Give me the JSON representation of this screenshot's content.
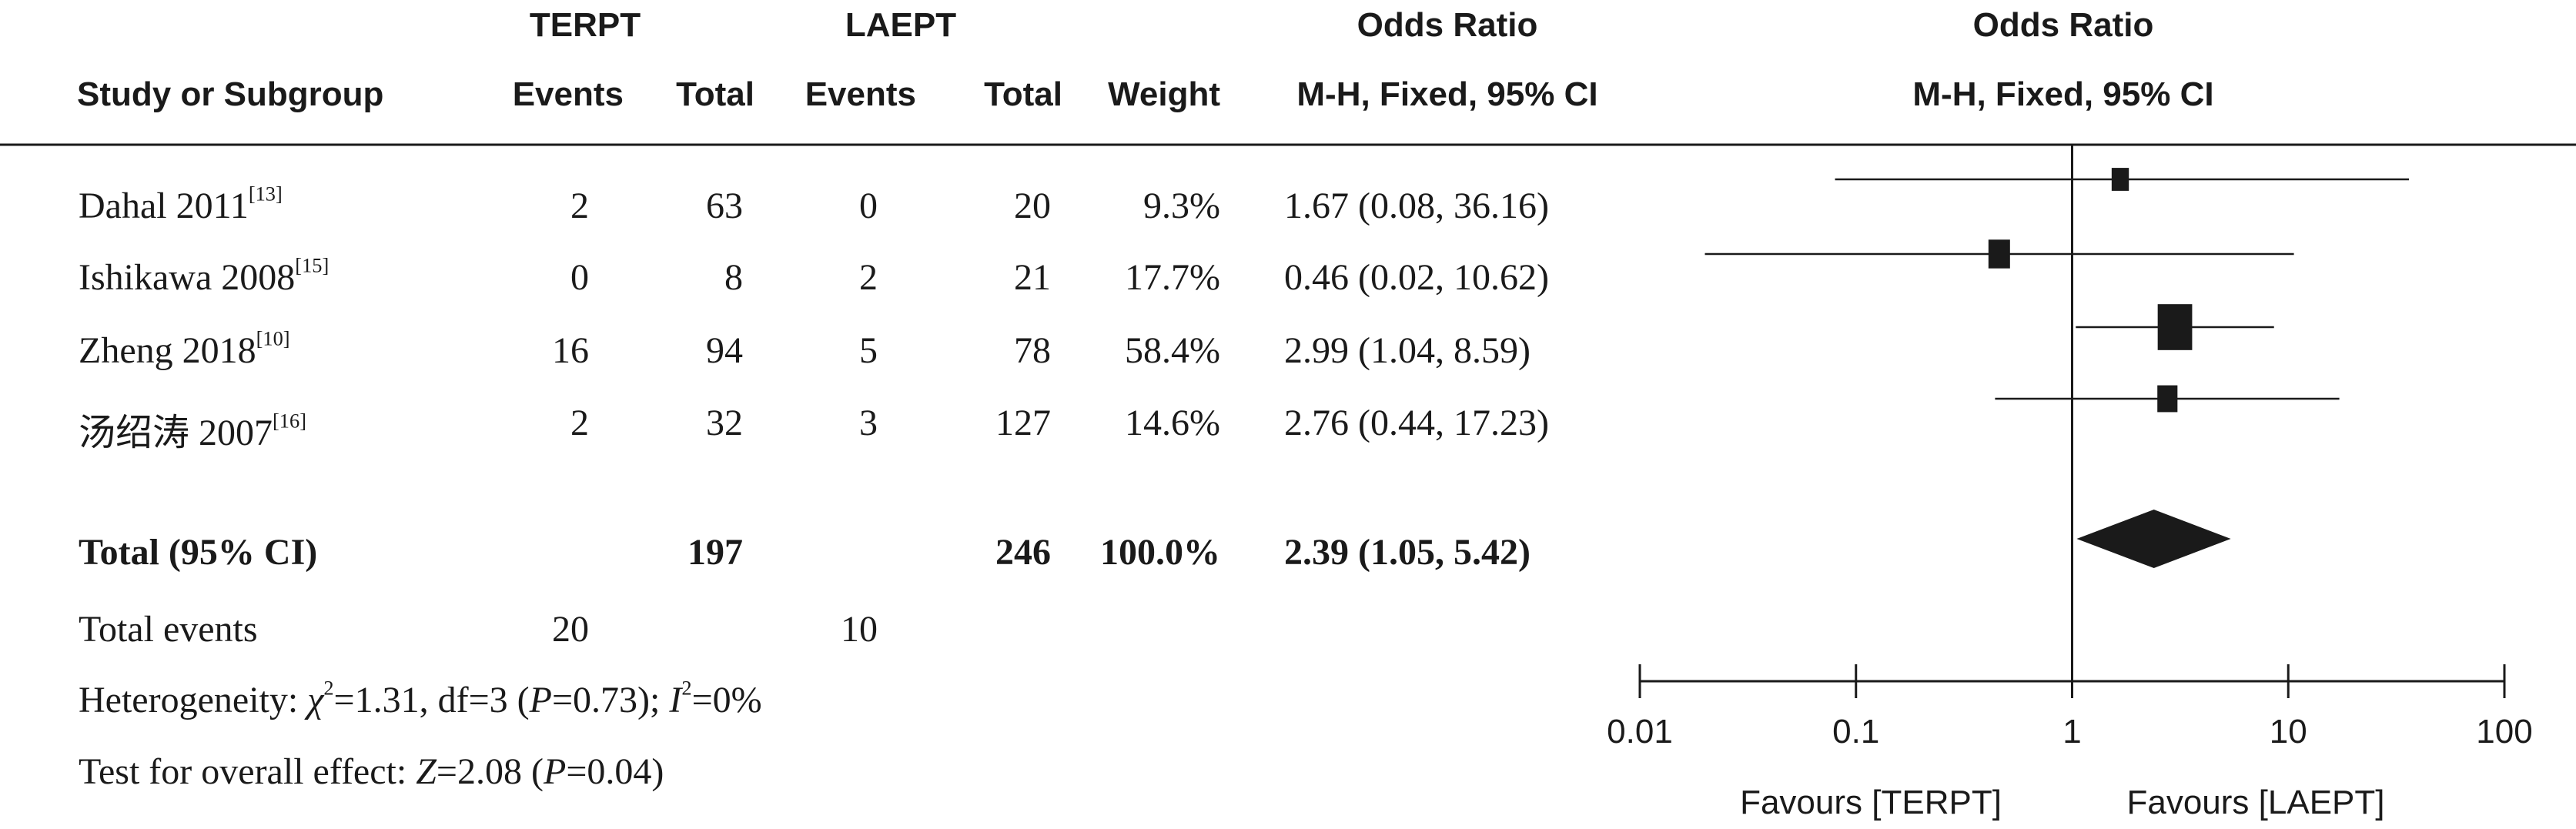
{
  "header": {
    "group1": "TERPT",
    "group2": "LAEPT",
    "or_title": "Odds Ratio",
    "col_study": "Study or Subgroup",
    "col_events1": "Events",
    "col_total1": "Total",
    "col_events2": "Events",
    "col_total2": "Total",
    "col_weight": "Weight",
    "col_method": "M-H, Fixed, 95% CI",
    "plot_title": "Odds Ratio",
    "plot_method": "M-H, Fixed, 95% CI"
  },
  "studies": [
    {
      "name": "Dahal 2011",
      "ref": "[13]",
      "events1": "2",
      "total1": "63",
      "events2": "0",
      "total2": "20",
      "weight": "9.3%",
      "ci_text": "1.67 (0.08, 36.16)"
    },
    {
      "name": "Ishikawa 2008",
      "ref": "[15]",
      "events1": "0",
      "total1": "8",
      "events2": "2",
      "total2": "21",
      "weight": "17.7%",
      "ci_text": "0.46 (0.02, 10.62)"
    },
    {
      "name": "Zheng 2018",
      "ref": "[10]",
      "events1": "16",
      "total1": "94",
      "events2": "5",
      "total2": "78",
      "weight": "58.4%",
      "ci_text": "2.99 (1.04, 8.59)"
    },
    {
      "name": "汤绍涛 2007",
      "ref": "[16]",
      "events1": "2",
      "total1": "32",
      "events2": "3",
      "total2": "127",
      "weight": "14.6%",
      "ci_text": "2.76 (0.44, 17.23)"
    }
  ],
  "total": {
    "label": "Total (95% CI)",
    "total1": "197",
    "total2": "246",
    "weight": "100.0%",
    "ci_text": "2.39 (1.05, 5.42)"
  },
  "total_events": {
    "label": "Total events",
    "events1": "20",
    "events2": "10"
  },
  "heterogeneity": {
    "prefix": "Heterogeneity: ",
    "chi_symbol": "χ",
    "chi_value": "=1.31, df=3 (",
    "p_symbol": "P",
    "p_value": "=0.73); ",
    "i_symbol": "I",
    "i_value": "=0%"
  },
  "overall": {
    "prefix": "Test for overall effect: ",
    "z_symbol": "Z",
    "z_value": "=2.08 (",
    "p_symbol": "P",
    "p_value": "=0.04)"
  },
  "axis": {
    "ticks": [
      "0.01",
      "0.1",
      "1",
      "10",
      "100"
    ],
    "favours_left": "Favours [TERPT]",
    "favours_right": "Favours [LAEPT]"
  },
  "chart_data": {
    "type": "forest",
    "scale": "log",
    "xlim": [
      0.01,
      100
    ],
    "reference": 1,
    "xticks": [
      0.01,
      0.1,
      1,
      10,
      100
    ],
    "studies": [
      {
        "name": "Dahal 2011",
        "or": 1.67,
        "lower": 0.08,
        "upper": 36.16,
        "weight": 9.3
      },
      {
        "name": "Ishikawa 2008",
        "or": 0.46,
        "lower": 0.02,
        "upper": 10.62,
        "weight": 17.7
      },
      {
        "name": "Zheng 2018",
        "or": 2.99,
        "lower": 1.04,
        "upper": 8.59,
        "weight": 58.4
      },
      {
        "name": "汤绍涛 2007",
        "or": 2.76,
        "lower": 0.44,
        "upper": 17.23,
        "weight": 14.6
      }
    ],
    "pooled": {
      "or": 2.39,
      "lower": 1.05,
      "upper": 5.42
    }
  }
}
